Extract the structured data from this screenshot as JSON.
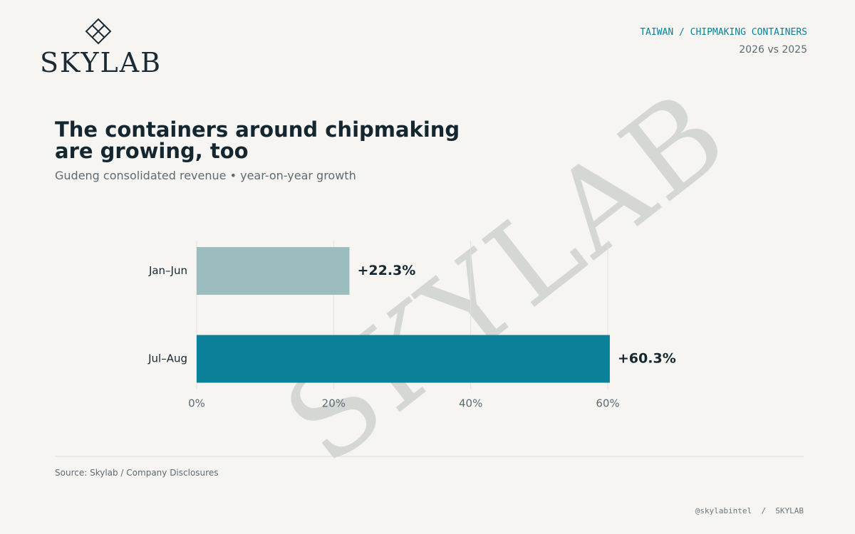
{
  "brand": "SKYLAB",
  "header": {
    "kicker": "TAIWAN / CHIPMAKING CONTAINERS",
    "period": "2026 vs 2025"
  },
  "chart_data": {
    "type": "hbar",
    "title": "The containers around chipmaking are growing, too",
    "subtitle": "Gudeng consolidated revenue • year-on-year growth",
    "watermark": "SKYLAB",
    "categories": [
      "Jan–Jun",
      "Jul–Aug"
    ],
    "values": [
      22.3,
      60.3
    ],
    "value_labels": [
      "+22.3%",
      "+60.3%"
    ],
    "colors": [
      "#9bbdbf",
      "#0a8099"
    ],
    "xlim": [
      0,
      66.3
    ],
    "xticks": [
      {
        "value": 0,
        "label": "0%"
      },
      {
        "value": 20,
        "label": "20%"
      },
      {
        "value": 40,
        "label": "40%"
      },
      {
        "value": 60,
        "label": "60%"
      }
    ],
    "grid": true
  },
  "source": "Source: Skylab / Company Disclosures",
  "footer": "@skylabintel  /  SKYLAB"
}
